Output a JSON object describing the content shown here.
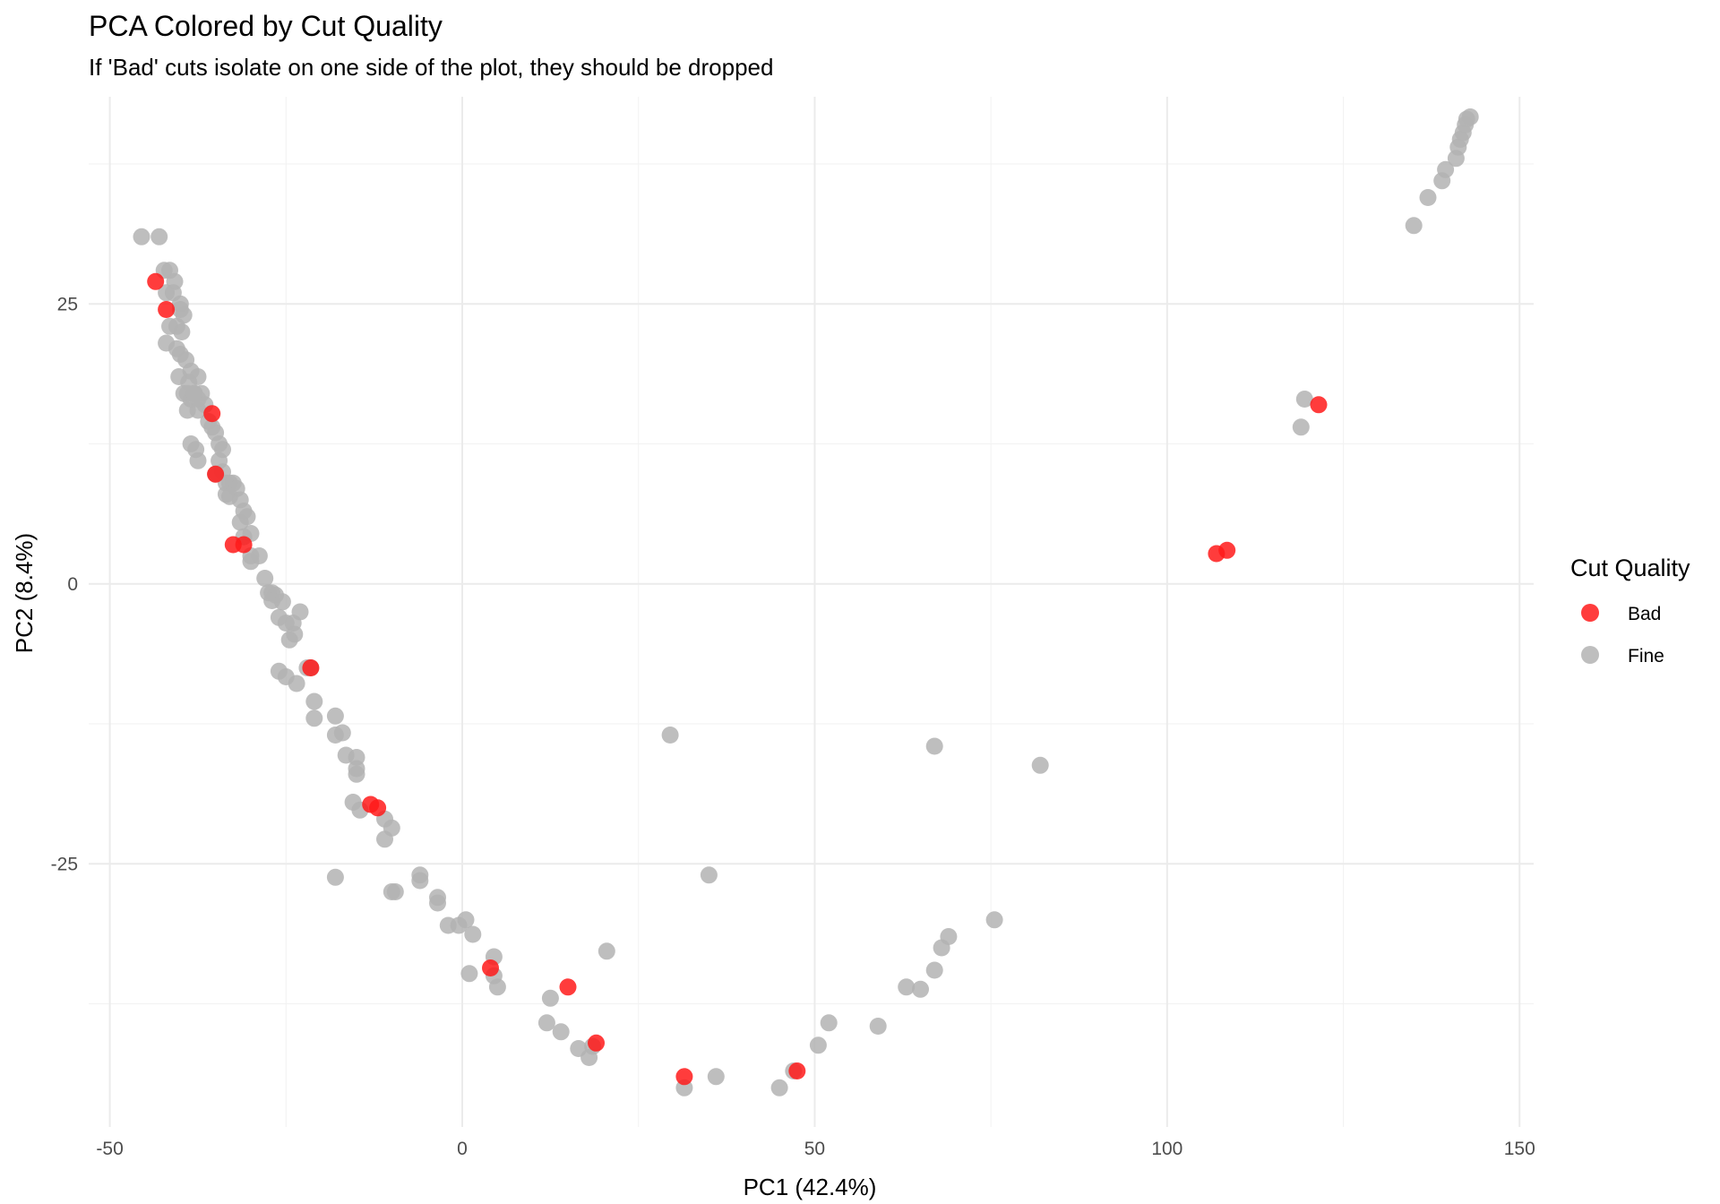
{
  "chart_data": {
    "type": "scatter",
    "title": "PCA Colored by Cut Quality",
    "subtitle": "If 'Bad' cuts isolate on one side of the plot, they should be dropped",
    "xlabel": "PC1 (42.4%)",
    "ylabel": "PC2 (8.4%)",
    "xlim": [
      -53,
      152
    ],
    "ylim": [
      -48.5,
      43.5
    ],
    "x_ticks": [
      -50,
      0,
      50,
      100,
      150
    ],
    "x_tick_labels": [
      "-50",
      "0",
      "50",
      "100",
      "150"
    ],
    "y_ticks": [
      -25,
      0,
      25
    ],
    "y_tick_labels": [
      "-25",
      "0",
      "25"
    ],
    "grid": true,
    "legend": {
      "title": "Cut Quality",
      "position": "right",
      "entries": [
        {
          "label": "Bad",
          "color": "#ff1a1a"
        },
        {
          "label": "Fine",
          "color": "#b3b3b3"
        }
      ]
    },
    "series": [
      {
        "name": "Fine",
        "color": "#b3b3b3",
        "x": [
          -45.5,
          -43,
          -42.3,
          -41.5,
          -40.8,
          -40,
          -42,
          -41,
          -40,
          -39.5,
          -40.5,
          -41.5,
          -42,
          -39.8,
          -40.5,
          -40,
          -39.2,
          -38.5,
          -37.5,
          -37.5,
          -38.5,
          -39.5,
          -40.2,
          -38.8,
          -39,
          -38,
          -37,
          -38,
          -39,
          -37.5,
          -36.5,
          -36,
          -35.5,
          -35,
          -34.5,
          -34,
          -38.5,
          -37.8,
          -37.5,
          -34.5,
          -34,
          -35,
          -33.5,
          -33,
          -32.5,
          -32,
          -33.5,
          -33,
          -31.5,
          -31,
          -31.5,
          -30.5,
          -30,
          -31,
          -30,
          -28.8,
          -30,
          -28,
          -27.5,
          -27,
          -26.5,
          -27,
          -25.5,
          -26,
          -25,
          -24,
          -23.8,
          -24.5,
          -23,
          -22,
          -21.5,
          -26,
          -25,
          -23.5,
          -21,
          -21,
          -18,
          -18,
          -17,
          -16.5,
          -15,
          -15,
          -15,
          -15.5,
          -14.5,
          -11,
          -10,
          -11,
          -9.5,
          -18,
          -6,
          -6,
          -10,
          -3.5,
          -3.5,
          -2,
          -0.5,
          0.5,
          1.5,
          1,
          4.5,
          4.5,
          5,
          12,
          12.5,
          14,
          16.5,
          18,
          18.5,
          20.5,
          29.5,
          35,
          31.5,
          36,
          45,
          47,
          50.5,
          52,
          59,
          63,
          65,
          67,
          68,
          69,
          75.5,
          67,
          82,
          119,
          119.5,
          135,
          137,
          139,
          139.5,
          141,
          141.3,
          141.6,
          142,
          142.3,
          142.5,
          143
        ],
        "y": [
          31,
          31,
          28,
          28,
          27,
          25,
          26,
          26,
          24.5,
          24,
          23,
          23,
          21.5,
          22.5,
          21,
          20.5,
          20,
          19,
          18.5,
          16.5,
          16.5,
          17,
          18.5,
          18,
          17,
          17,
          17,
          17,
          15.5,
          15.5,
          16,
          14.5,
          14,
          13.5,
          12.5,
          12,
          12.5,
          12,
          11,
          11,
          10,
          9.8,
          9,
          9,
          9,
          8.5,
          8,
          7.8,
          7.5,
          6.5,
          5.5,
          6,
          4.5,
          4.2,
          2.5,
          2.5,
          2,
          0.5,
          -0.8,
          -0.8,
          -1,
          -1.5,
          -1.6,
          -3,
          -3.5,
          -3.5,
          -4.5,
          -5,
          -2.5,
          -7.5,
          -7.5,
          -7.8,
          -8.3,
          -8.9,
          -10.5,
          -12,
          -11.8,
          -13.5,
          -13.3,
          -15.3,
          -15.5,
          -16.5,
          -17,
          -19.5,
          -20.2,
          -21,
          -21.8,
          -22.8,
          -27.5,
          -26.2,
          -26,
          -26.5,
          -27.5,
          -28,
          -28.5,
          -30.5,
          -30.5,
          -30,
          -31.3,
          -34.8,
          -33.3,
          -35,
          -36,
          -39.2,
          -37,
          -40,
          -41.5,
          -42.3,
          -41.3,
          -32.8,
          -13.5,
          -26,
          -45,
          -44,
          -45,
          -43.5,
          -41.2,
          -39.2,
          -39.5,
          -36,
          -36.2,
          -34.5,
          -32.5,
          -31.5,
          -30,
          -14.5,
          -16.2,
          14,
          16.5,
          32,
          34.5,
          36,
          37,
          38,
          39,
          39.7,
          40.3,
          41,
          41.5,
          41.7
        ]
      },
      {
        "name": "Bad",
        "color": "#ff1a1a",
        "x": [
          -43.5,
          -42,
          -35.5,
          -35,
          -32.5,
          -31,
          -21.5,
          -13,
          -12,
          4,
          15,
          19,
          31.5,
          47.5,
          107,
          108.5,
          121.5
        ],
        "y": [
          27,
          24.5,
          15.2,
          9.8,
          3.5,
          3.5,
          -7.5,
          -19.7,
          -20,
          -34.3,
          -36,
          -41,
          -44,
          -43.5,
          2.7,
          3,
          16
        ]
      }
    ]
  }
}
